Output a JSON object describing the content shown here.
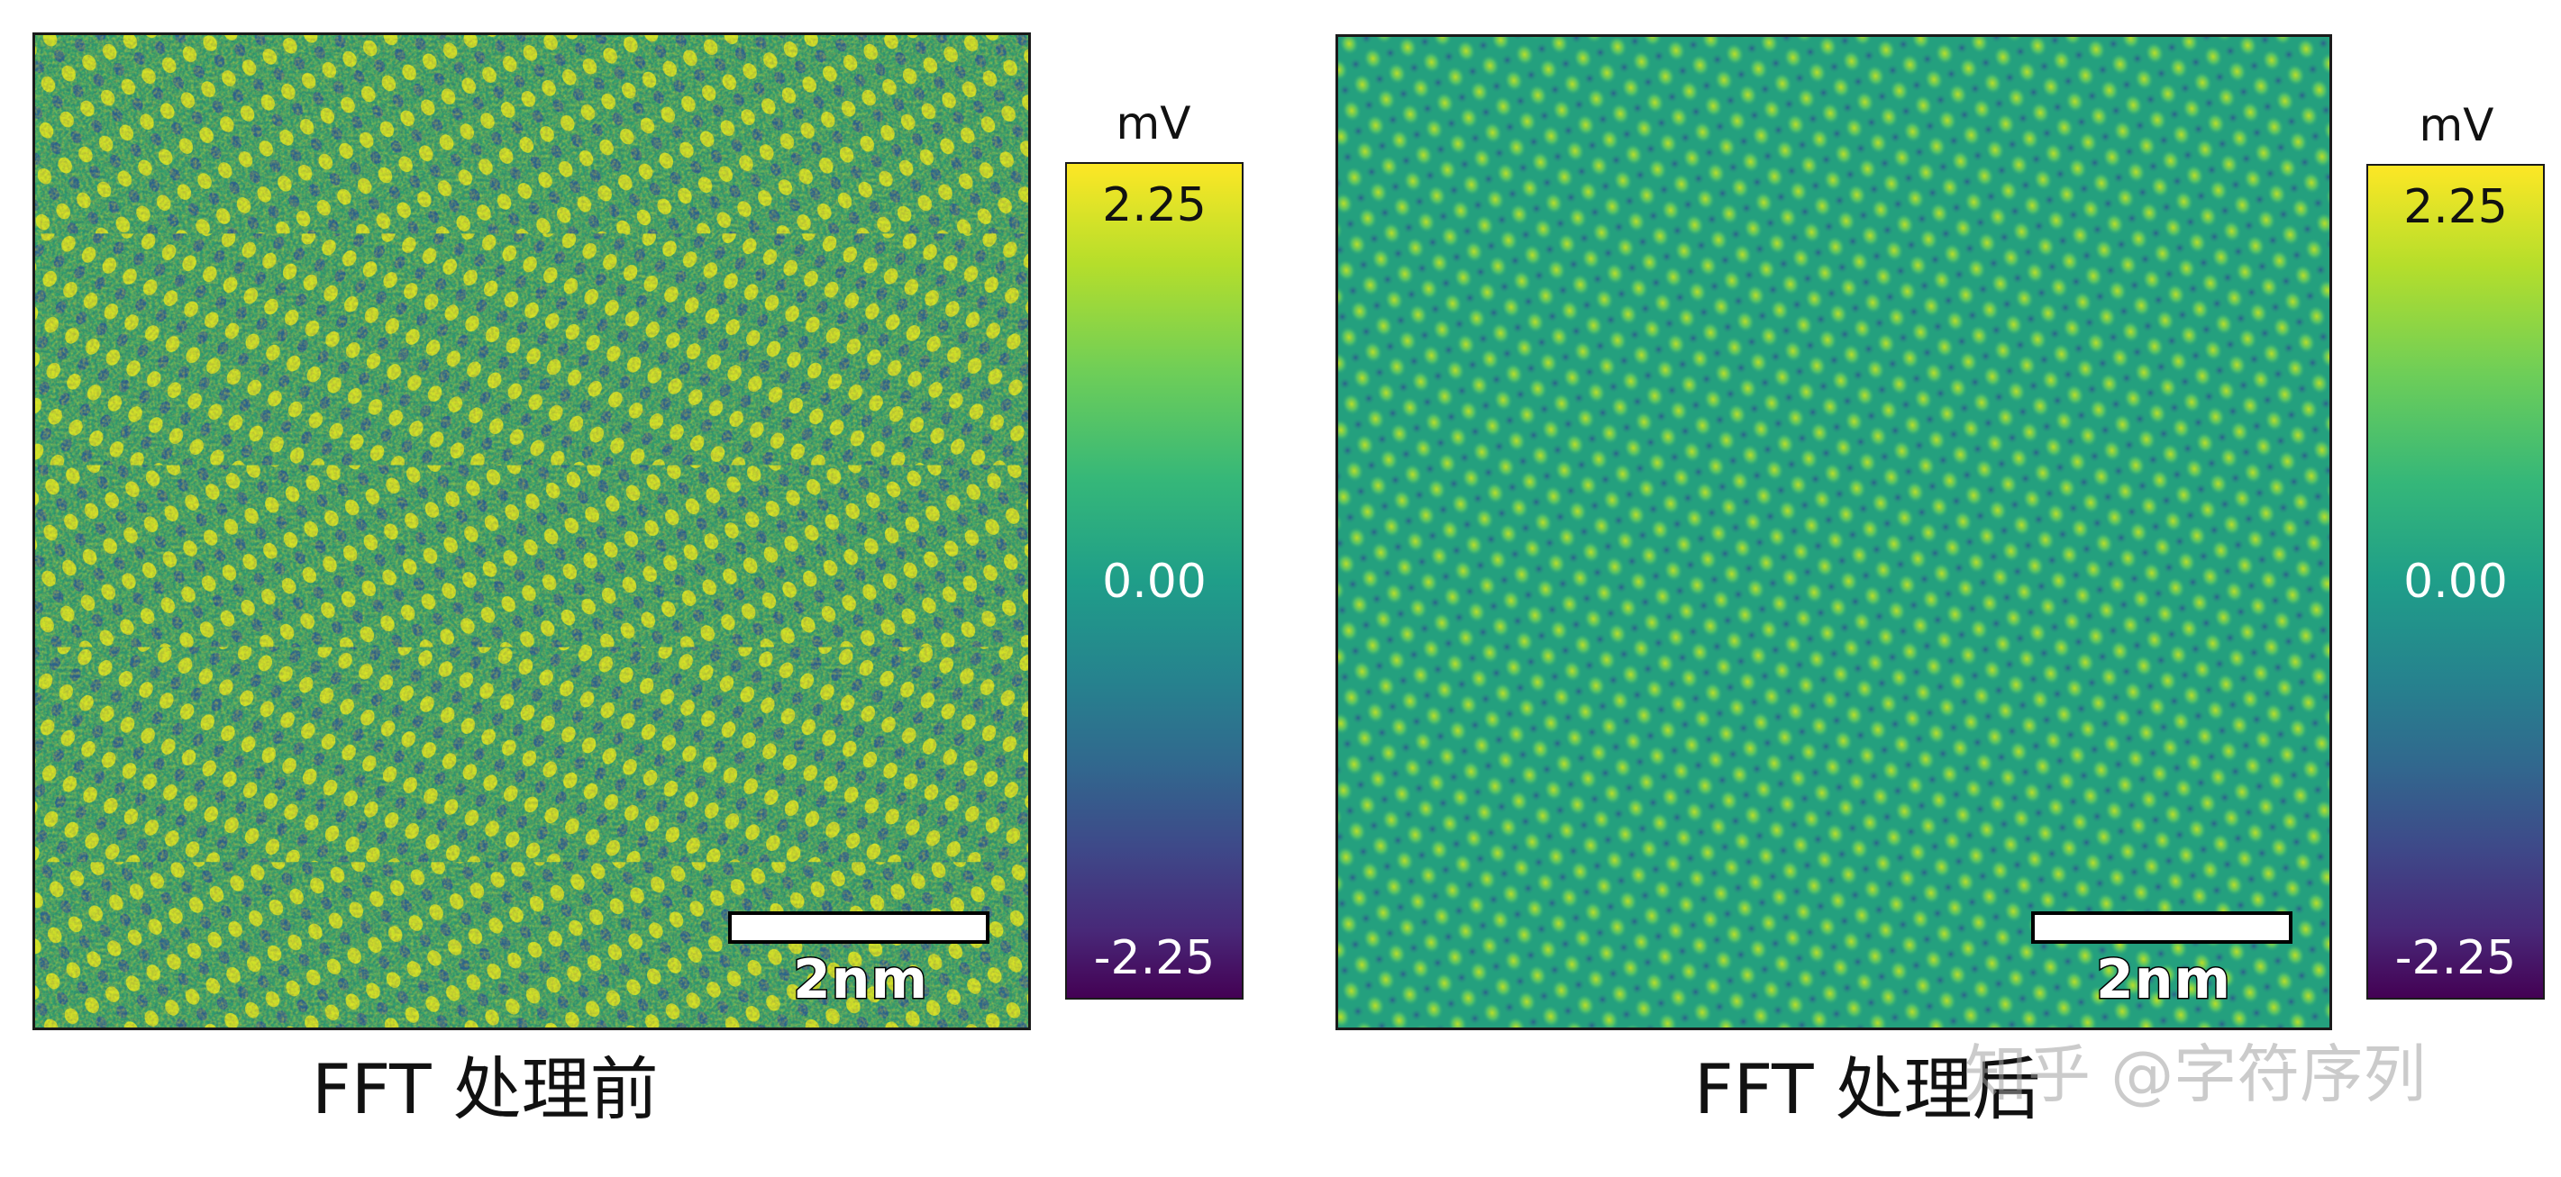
{
  "panels": [
    {
      "id": "before",
      "caption": "FFT 处理前",
      "scale_bar_label": "2nm",
      "colorbar": {
        "unit": "mV",
        "max_label": "2.25",
        "mid_label": "0.00",
        "min_label": "-2.25"
      }
    },
    {
      "id": "after",
      "caption": "FFT 处理后",
      "scale_bar_label": "2nm",
      "colorbar": {
        "unit": "mV",
        "max_label": "2.25",
        "mid_label": "0.00",
        "min_label": "-2.25"
      }
    }
  ],
  "watermark": "知乎 @字符序列",
  "colors": {
    "viridis_top": "#fde725",
    "viridis_mid": "#21918c",
    "viridis_bottom": "#440154",
    "frame": "#1a1a1a"
  }
}
